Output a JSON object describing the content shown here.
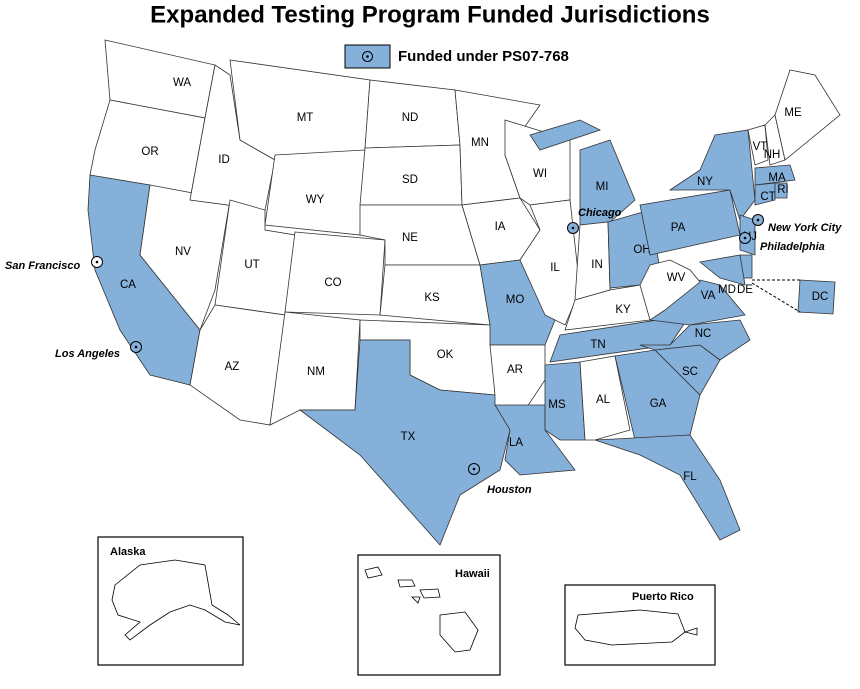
{
  "title": "Expanded Testing Program Funded Jurisdictions",
  "legend": {
    "label": "Funded under PS07-768",
    "color": "#85b0da"
  },
  "states": [
    {
      "label": "WA",
      "funded": false
    },
    {
      "label": "OR",
      "funded": false
    },
    {
      "label": "CA",
      "funded": true
    },
    {
      "label": "NV",
      "funded": false
    },
    {
      "label": "ID",
      "funded": false
    },
    {
      "label": "MT",
      "funded": false
    },
    {
      "label": "WY",
      "funded": false
    },
    {
      "label": "UT",
      "funded": false
    },
    {
      "label": "AZ",
      "funded": false
    },
    {
      "label": "CO",
      "funded": false
    },
    {
      "label": "NM",
      "funded": false
    },
    {
      "label": "ND",
      "funded": false
    },
    {
      "label": "SD",
      "funded": false
    },
    {
      "label": "NE",
      "funded": false
    },
    {
      "label": "KS",
      "funded": false
    },
    {
      "label": "OK",
      "funded": false
    },
    {
      "label": "TX",
      "funded": true
    },
    {
      "label": "MN",
      "funded": false
    },
    {
      "label": "IA",
      "funded": false
    },
    {
      "label": "MO",
      "funded": true
    },
    {
      "label": "AR",
      "funded": false
    },
    {
      "label": "LA",
      "funded": true
    },
    {
      "label": "WI",
      "funded": false
    },
    {
      "label": "IL",
      "funded": false
    },
    {
      "label": "MI",
      "funded": true
    },
    {
      "label": "IN",
      "funded": false
    },
    {
      "label": "OH",
      "funded": true
    },
    {
      "label": "KY",
      "funded": false
    },
    {
      "label": "TN",
      "funded": true
    },
    {
      "label": "MS",
      "funded": true
    },
    {
      "label": "AL",
      "funded": false
    },
    {
      "label": "GA",
      "funded": true
    },
    {
      "label": "FL",
      "funded": true
    },
    {
      "label": "SC",
      "funded": true
    },
    {
      "label": "NC",
      "funded": true
    },
    {
      "label": "VA",
      "funded": true
    },
    {
      "label": "WV",
      "funded": false
    },
    {
      "label": "PA",
      "funded": true
    },
    {
      "label": "NY",
      "funded": true
    },
    {
      "label": "VT",
      "funded": false
    },
    {
      "label": "NH",
      "funded": false
    },
    {
      "label": "ME",
      "funded": false
    },
    {
      "label": "MA",
      "funded": true
    },
    {
      "label": "CT",
      "funded": true
    },
    {
      "label": "RI",
      "funded": true
    },
    {
      "label": "NJ",
      "funded": true
    },
    {
      "label": "DE",
      "funded": true
    },
    {
      "label": "MD",
      "funded": true
    },
    {
      "label": "DC",
      "funded": true
    }
  ],
  "cities": [
    {
      "label": "San Francisco"
    },
    {
      "label": "Los Angeles"
    },
    {
      "label": "Chicago"
    },
    {
      "label": "Houston"
    },
    {
      "label": "New York City"
    },
    {
      "label": "Philadelphia"
    }
  ],
  "insets": [
    {
      "label": "Alaska"
    },
    {
      "label": "Hawaii"
    },
    {
      "label": "Puerto Rico"
    }
  ]
}
